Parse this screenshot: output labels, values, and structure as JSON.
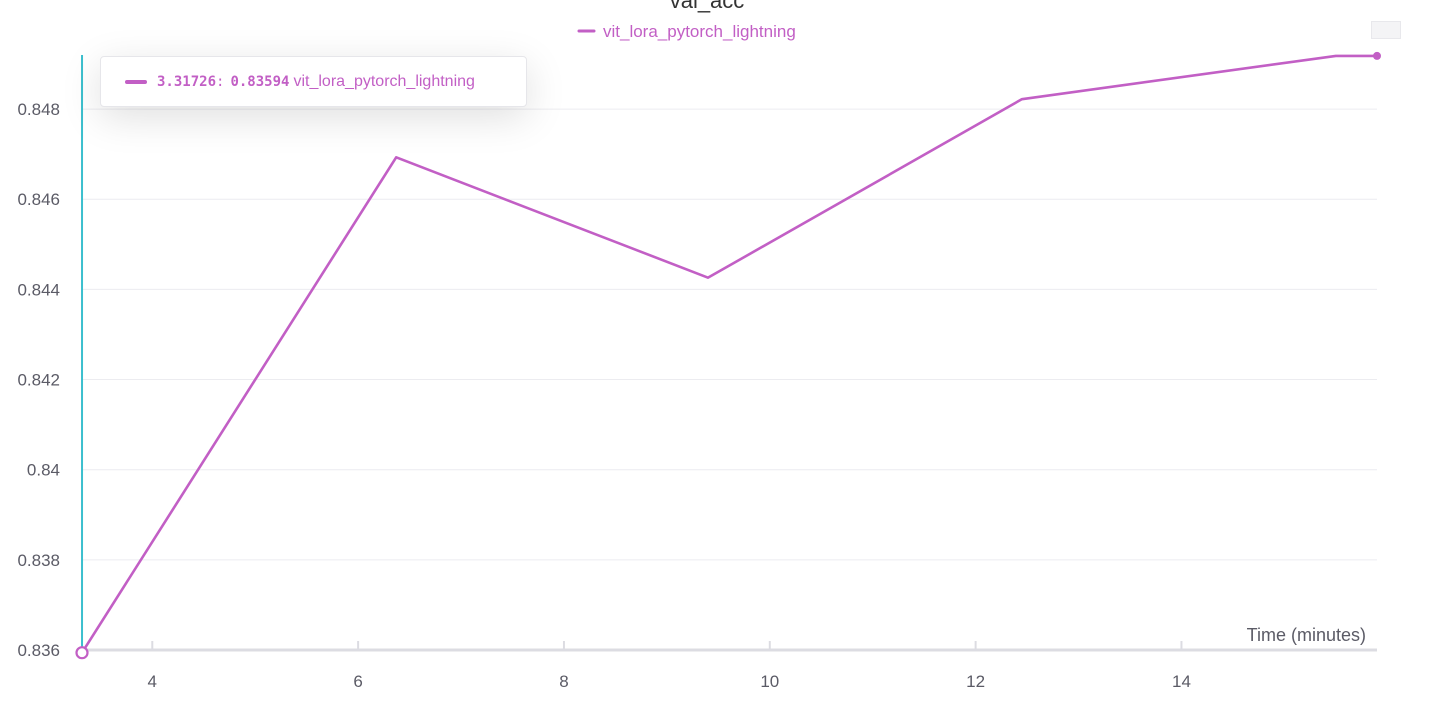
{
  "chart_data": {
    "type": "line",
    "title": "val_acc",
    "xlabel": "Time (minutes)",
    "ylabel": "",
    "xlim": [
      3.317,
      15.9
    ],
    "ylim": [
      0.836,
      0.8492
    ],
    "x_ticks": [
      4,
      6,
      8,
      10,
      12,
      14
    ],
    "y_ticks": [
      0.836,
      0.838,
      0.84,
      0.842,
      0.844,
      0.846,
      0.848
    ],
    "x_tick_labels": [
      "4",
      "6",
      "8",
      "10",
      "12",
      "14"
    ],
    "y_tick_labels": [
      "0.836",
      "0.838",
      "0.84",
      "0.842",
      "0.844",
      "0.846",
      "0.848"
    ],
    "grid": true,
    "legend_position": "top-center",
    "series": [
      {
        "name": "vit_lora_pytorch_lightning",
        "color": "#c25fc5",
        "x": [
          3.317,
          6.37,
          9.4,
          12.45,
          15.5,
          15.9
        ],
        "y": [
          0.83594,
          0.84693,
          0.84426,
          0.84822,
          0.84918,
          0.84918
        ]
      }
    ],
    "cursor_x": 3.31726
  },
  "tooltip": {
    "x_value": "3.31726",
    "separator": ":",
    "y_value": "0.83594",
    "series_name": "vit_lora_pytorch_lightning"
  },
  "colors": {
    "series": "#c25fc5",
    "cursor": "#3bbfce",
    "grid": "#ececf0",
    "axis": "#dcdce2"
  }
}
